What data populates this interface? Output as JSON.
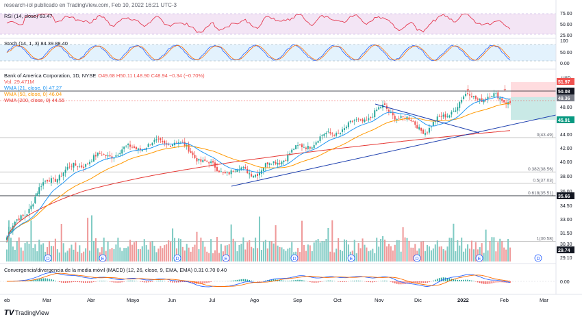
{
  "header": {
    "text": "research-iol publicado en TradingView.com, Feb 10, 2022 16:21 UTC-3"
  },
  "footer": {
    "logo_text": "TradingView"
  },
  "colors": {
    "up": "#26a69a",
    "down": "#ef5350",
    "wma21": "#2196f3",
    "wma50": "#ff9800",
    "wma200": "#e53935",
    "trend": "#1e40af",
    "rsi": "#e53950",
    "rsi_bg": "#f3e5f5",
    "stoch_bg": "#e3f2fd",
    "macd": "#2962ff",
    "signal": "#ff6d00"
  },
  "rsi_panel": {
    "legend": "RSI (14, close) 63.47",
    "levels": [
      "75.00",
      "50.00",
      "25.00"
    ]
  },
  "stoch_panel": {
    "legend": "Stoch (14, 1, 3) 84.39 88.40",
    "levels": [
      "100",
      "50.00",
      "0.00"
    ]
  },
  "main_panel": {
    "title": "Bank of America Corporation, 1D, NYSE",
    "ohlc": "O49.68 H50.11 L48.90 C48.94 −0.34 (−0.70%)",
    "vol": "Vol. 29.471M",
    "wma21": "WMA (21, close, 0) 47.27",
    "wma50": "WMA (50, close, 0) 46.04",
    "wma200": "WMA (200, close, 0) 44.55",
    "currency": "USD",
    "fib_labels": [
      "0(43.49)",
      "0.382(38.56)",
      "0.5(37.03)",
      "0.618(35.51)",
      "1(30.58)"
    ],
    "axis_ticks": [
      "51.97",
      "48.00",
      "46.00",
      "44.00",
      "42.00",
      "40.00",
      "38.00",
      "36.00",
      "34.50",
      "33.00",
      "31.50",
      "30.30",
      "29.10"
    ],
    "price_tags": [
      {
        "text": "51.97",
        "color": "#ef5350"
      },
      {
        "text": "50.08",
        "color": "#131722"
      },
      {
        "text": "49.36",
        "color": "#787b86"
      },
      {
        "text": "45.91",
        "color": "#089981"
      },
      {
        "text": "35.66",
        "color": "#131722"
      },
      {
        "text": "29.74",
        "color": "#131722"
      }
    ]
  },
  "macd_panel": {
    "legend": "Convergencia/divergencia de la media móvil (MACD) (12, 26, close, 9, EMA, EMA) 0.31 0.70 0.40",
    "zero": "0.00"
  },
  "x_axis": [
    "eb",
    "Mar",
    "Abr",
    "Mayo",
    "Jun",
    "Jul",
    "Ago",
    "Sep",
    "Oct",
    "Nov",
    "Dic",
    "2022",
    "Feb",
    "Mar"
  ],
  "chart_data": {
    "type": "candlestick",
    "title": "Bank of America Corporation, 1D, NYSE",
    "ylabel": "USD",
    "ylim": [
      29.1,
      52.5
    ],
    "last": {
      "open": 49.68,
      "high": 50.11,
      "low": 48.9,
      "close": 48.94,
      "change": -0.34,
      "change_pct": -0.7,
      "volume": "29.471M"
    },
    "monthly_path": [
      {
        "m": "Feb",
        "c": 31.0
      },
      {
        "m": "Mar",
        "c": 37.5
      },
      {
        "m": "Abr",
        "c": 40.3
      },
      {
        "m": "Mayo",
        "c": 42.0
      },
      {
        "m": "Jun",
        "c": 43.0
      },
      {
        "m": "Jul",
        "c": 38.8
      },
      {
        "m": "Ago",
        "c": 38.6
      },
      {
        "m": "Sep",
        "c": 42.0
      },
      {
        "m": "Oct",
        "c": 44.8
      },
      {
        "m": "Nov",
        "c": 47.8
      },
      {
        "m": "Dic",
        "c": 44.6
      },
      {
        "m": "2022",
        "c": 49.5
      },
      {
        "m": "Feb",
        "c": 48.94
      }
    ],
    "fibonacci": [
      {
        "level": "0",
        "price": 43.49
      },
      {
        "level": "0.382",
        "price": 38.56
      },
      {
        "level": "0.5",
        "price": 37.03
      },
      {
        "level": "0.618",
        "price": 35.51
      },
      {
        "level": "1",
        "price": 30.58
      }
    ],
    "series": [
      {
        "name": "WMA (21, close, 0)",
        "last": 47.27
      },
      {
        "name": "WMA (50, close, 0)",
        "last": 46.04
      },
      {
        "name": "WMA (200, close, 0)",
        "last": 44.55
      },
      {
        "name": "RSI (14, close)",
        "last": 63.47
      },
      {
        "name": "Stoch (14, 1, 3)",
        "last": [
          84.39,
          88.4
        ]
      },
      {
        "name": "MACD (12, 26, close, 9, EMA, EMA)",
        "last": [
          0.31,
          0.7,
          0.4
        ]
      }
    ]
  }
}
